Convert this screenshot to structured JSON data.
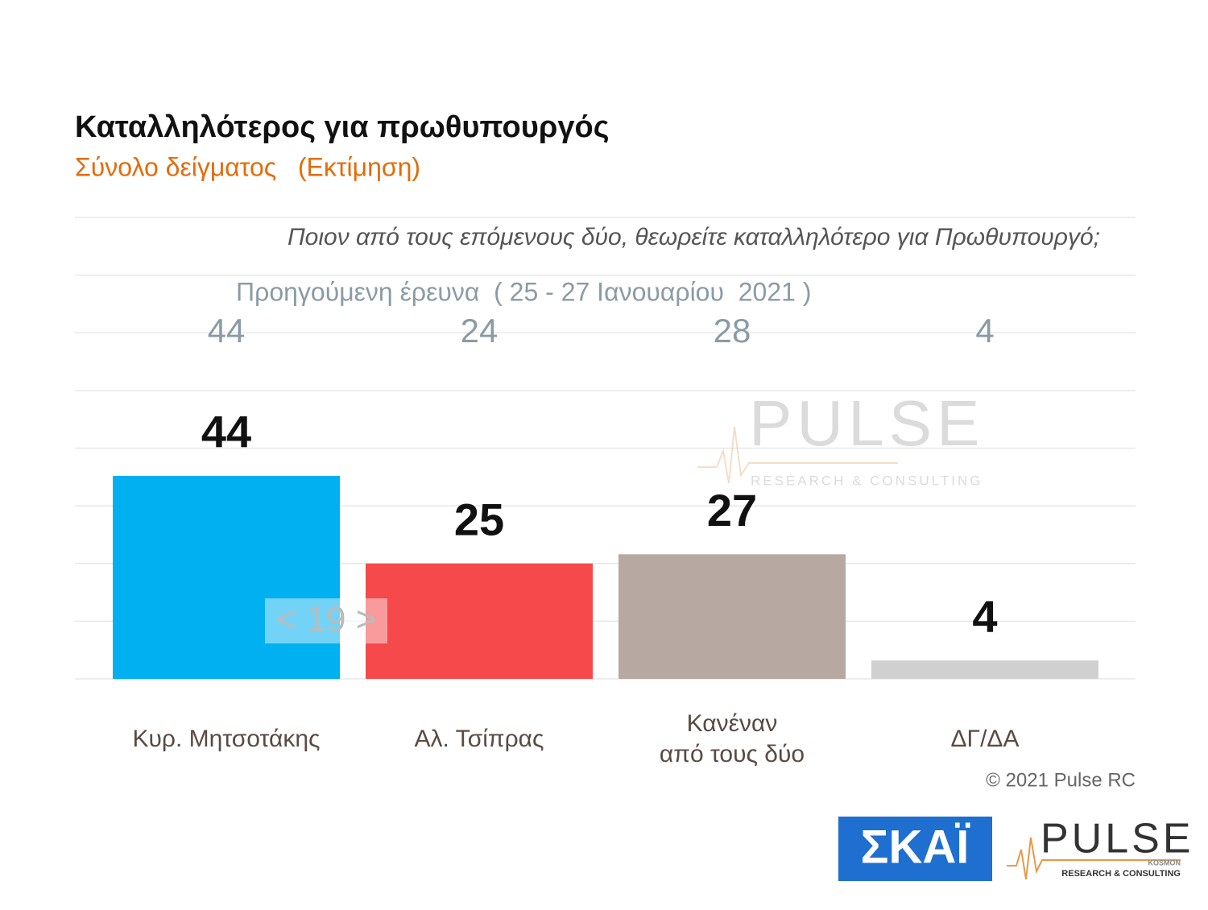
{
  "chart_data": {
    "type": "bar",
    "title": "Καταλληλότερος για πρωθυπουργός",
    "subtitle": "Σύνολο δείγματος   (Εκτίμηση)",
    "question": "Ποιον από τους επόμενους δύο, θεωρείτε καταλληλότερο για Πρωθυπουργό;",
    "categories": [
      "Κυρ. Μητσοτάκης",
      "Αλ. Τσίπρας",
      "Κανέναν\nαπό τους δύο",
      "ΔΓ/ΔΑ"
    ],
    "values": [
      44,
      25,
      27,
      4
    ],
    "colors": [
      "#00b0f0",
      "#f5494b",
      "#b7a9a1",
      "#d0d0d0"
    ],
    "ylim": [
      0,
      100
    ],
    "grid": true,
    "previous": {
      "label": "Προηγούμενη έρευνα  ( 25 - 27 Ιανουαρίου  2021 )",
      "values": [
        44,
        24,
        28,
        4
      ]
    },
    "gap_annotation": "< 19 >",
    "copyright": "© 2021 Pulse RC"
  },
  "logos": {
    "skai": "ΣΚΑΪ",
    "pulse": "PULSE",
    "pulse_tag": "KOSMON",
    "pulse_sub": "RESEARCH & CONSULTING"
  }
}
